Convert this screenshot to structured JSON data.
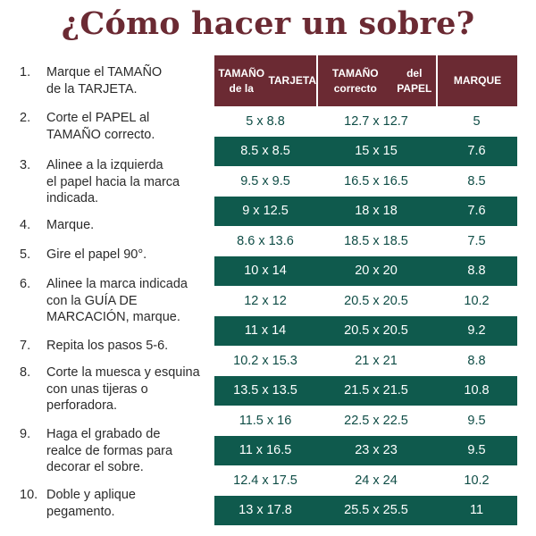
{
  "title": "¿Cómo hacer un sobre?",
  "steps": [
    {
      "num": "1.",
      "lines": [
        "Marque el TAMAÑO",
        "de la TARJETA."
      ]
    },
    {
      "num": "2.",
      "lines": [
        "Corte el PAPEL al",
        "TAMAÑO correcto."
      ]
    },
    {
      "num": "3.",
      "lines": [
        "Alinee a la izquierda",
        "el papel hacia la marca",
        "indicada."
      ]
    },
    {
      "num": "4.",
      "lines": [
        "Marque."
      ]
    },
    {
      "num": "5.",
      "lines": [
        "Gire el papel 90°."
      ]
    },
    {
      "num": "6.",
      "lines": [
        "Alinee la marca indicada",
        "con la GUÍA DE",
        "MARCACIÓN, marque."
      ]
    },
    {
      "num": "7.",
      "lines": [
        "Repita los pasos 5-6."
      ]
    },
    {
      "num": "8.",
      "lines": [
        "Corte la muesca y esquina",
        "con unas tijeras o",
        "perforadora."
      ]
    },
    {
      "num": "9.",
      "lines": [
        "Haga el grabado de",
        "realce de formas para",
        "decorar el sobre."
      ]
    },
    {
      "num": "10.",
      "lines": [
        "Doble y aplique",
        "pegamento."
      ]
    }
  ],
  "table": {
    "headers": [
      [
        "TAMAÑO de la",
        "TARJETA"
      ],
      [
        "TAMAÑO correcto",
        "del PAPEL"
      ],
      [
        "MARQUE"
      ]
    ],
    "rows": [
      [
        "5 x 8.8",
        "12.7 x 12.7",
        "5"
      ],
      [
        "8.5 x 8.5",
        "15 x 15",
        "7.6"
      ],
      [
        "9.5 x 9.5",
        "16.5 x 16.5",
        "8.5"
      ],
      [
        "9 x 12.5",
        "18 x 18",
        "7.6"
      ],
      [
        "8.6 x 13.6",
        "18.5 x 18.5",
        "7.5"
      ],
      [
        "10 x 14",
        "20 x 20",
        "8.8"
      ],
      [
        "12 x 12",
        "20.5 x 20.5",
        "10.2"
      ],
      [
        "11 x 14",
        "20.5 x 20.5",
        "9.2"
      ],
      [
        "10.2 x 15.3",
        "21 x 21",
        "8.8"
      ],
      [
        "13.5 x 13.5",
        "21.5 x 21.5",
        "10.8"
      ],
      [
        "11.5 x 16",
        "22.5 x 22.5",
        "9.5"
      ],
      [
        "11 x 16.5",
        "23 x 23",
        "9.5"
      ],
      [
        "12.4 x 17.5",
        "24 x 24",
        "10.2"
      ],
      [
        "13 x 17.8",
        "25.5 x 25.5",
        "11"
      ]
    ]
  },
  "colors": {
    "title": "#6b2a33",
    "header_bg": "#6b2a33",
    "dark_row_bg": "#0f5a4d",
    "light_row_text": "#0f4d46"
  }
}
